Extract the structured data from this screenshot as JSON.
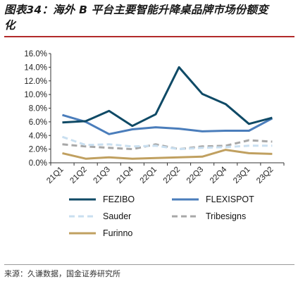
{
  "title_line1": "图表34：海外 B 平台主要智能升降桌品牌市场份额变",
  "title_line2": "化",
  "source": "来源：久谦数据，国金证券研究所",
  "chart_data": {
    "type": "line",
    "categories": [
      "21Q1",
      "21Q2",
      "21Q3",
      "21Q4",
      "22Q1",
      "22Q2",
      "22Q3",
      "22Q4",
      "23Q1",
      "23Q2"
    ],
    "y_ticks": [
      "16.0%",
      "14.0%",
      "12.0%",
      "10.0%",
      "8.0%",
      "6.0%",
      "4.0%",
      "2.0%",
      "0.0%"
    ],
    "ylim": [
      0,
      16
    ],
    "grid": false,
    "legend_position": "bottom",
    "series": [
      {
        "name": "FEZIBO",
        "color": "#0f4a66",
        "style": "solid",
        "values": [
          5.9,
          6.1,
          7.6,
          5.4,
          7.1,
          14.0,
          10.1,
          8.6,
          5.7,
          6.6
        ]
      },
      {
        "name": "FLEXISPOT",
        "color": "#4a7dbb",
        "style": "solid",
        "values": [
          7.0,
          6.0,
          4.2,
          4.9,
          5.2,
          5.0,
          4.6,
          4.7,
          4.7,
          6.5
        ]
      },
      {
        "name": "Sauder",
        "color": "#c9dff0",
        "style": "dashed",
        "values": [
          3.8,
          2.6,
          2.7,
          2.4,
          2.5,
          2.0,
          2.2,
          2.3,
          2.5,
          2.5
        ]
      },
      {
        "name": "Tribesigns",
        "color": "#a8a8a8",
        "style": "dashed",
        "values": [
          2.7,
          2.4,
          2.2,
          2.0,
          2.7,
          2.0,
          2.4,
          2.5,
          3.3,
          3.1
        ]
      },
      {
        "name": "Furinno",
        "color": "#c0a060",
        "style": "solid",
        "values": [
          1.4,
          0.6,
          0.8,
          0.6,
          0.7,
          0.8,
          0.9,
          1.9,
          1.4,
          1.3
        ]
      }
    ]
  }
}
